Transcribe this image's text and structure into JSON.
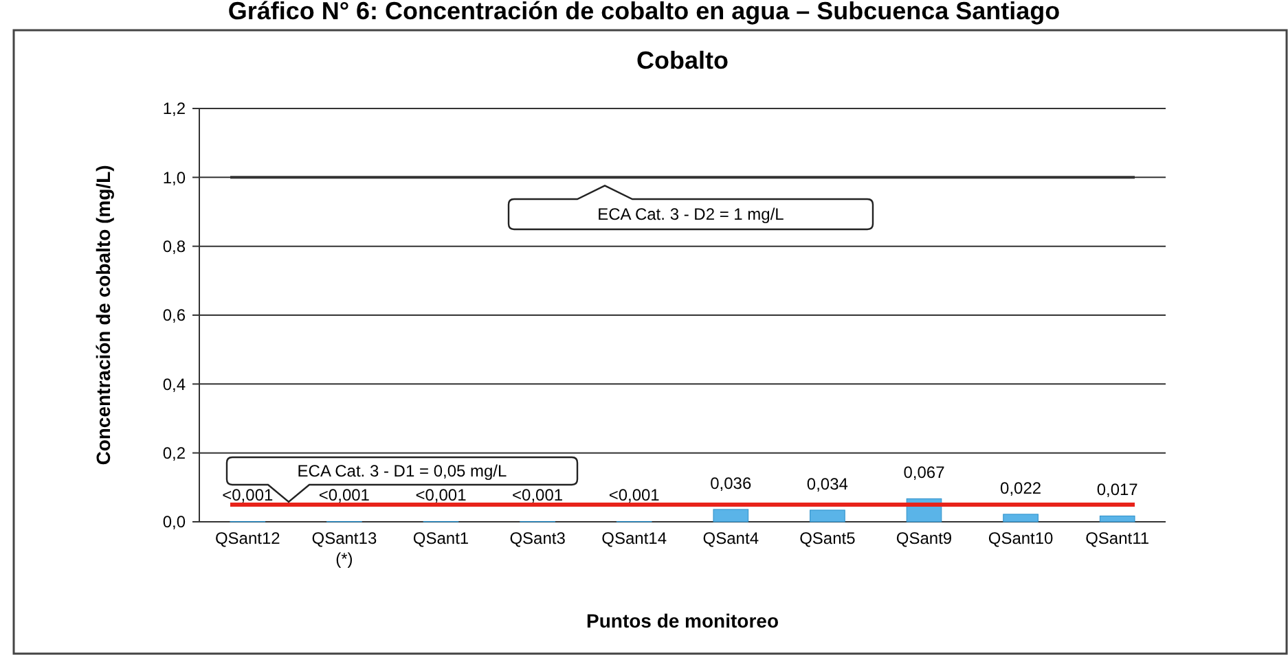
{
  "chart_data": {
    "type": "bar",
    "title": "Gráfico N° 6: Concentración de cobalto en agua – Subcuenca Santiago",
    "subtitle": "Cobalto",
    "xlabel": "Puntos de monitoreo",
    "ylabel": "Concentración de cobalto (mg/L)",
    "categories": [
      "QSant12",
      "QSant13\n(*)",
      "QSant1",
      "QSant3",
      "QSant14",
      "QSant4",
      "QSant5",
      "QSant9",
      "QSant10",
      "QSant11"
    ],
    "values": [
      0.001,
      0.001,
      0.001,
      0.001,
      0.001,
      0.036,
      0.034,
      0.067,
      0.022,
      0.017
    ],
    "value_labels": [
      "<0,001",
      "<0,001",
      "<0,001",
      "<0,001",
      "<0,001",
      "0,036",
      "0,034",
      "0,067",
      "0,022",
      "0,017"
    ],
    "color": "#5ab4e8",
    "ylim": [
      0,
      1.2
    ],
    "yticks": [
      {
        "value": 0,
        "label": "0,0"
      },
      {
        "value": 0.2,
        "label": "0,2"
      },
      {
        "value": 0.4,
        "label": "0,4"
      },
      {
        "value": 0.6,
        "label": "0,6"
      },
      {
        "value": 0.8,
        "label": "0,8"
      },
      {
        "value": 1.0,
        "label": "1,0"
      },
      {
        "value": 1.2,
        "label": "1,2"
      }
    ],
    "grid": "y",
    "ref_lines": [
      {
        "axis": "y",
        "value": 0.05,
        "label": "ECA Cat. 3 - D1 = 0,05 mg/L",
        "color": "#e8231a"
      },
      {
        "axis": "y",
        "value": 1.0,
        "label": "ECA Cat. 3 - D2 = 1 mg/L",
        "color": "#333333"
      }
    ]
  }
}
